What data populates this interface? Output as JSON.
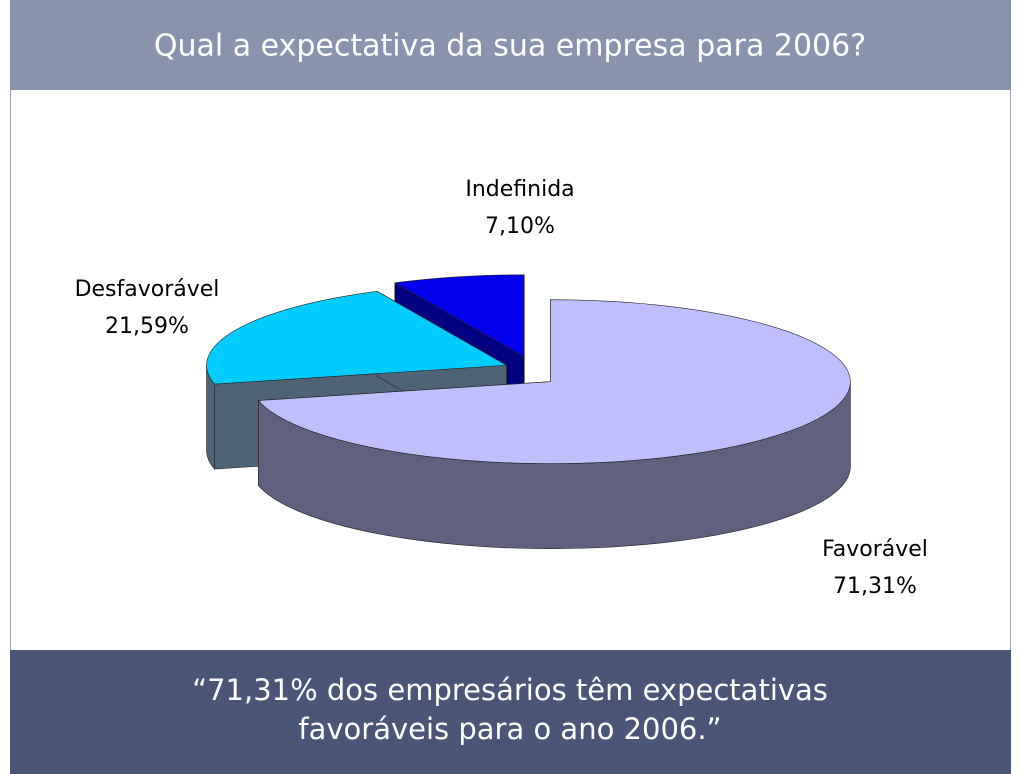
{
  "chart_data": {
    "type": "pie3d",
    "title": "Qual a expectativa da sua empresa para 2006?",
    "categories": [
      "Favorável",
      "Desfavorável",
      "Indefinida"
    ],
    "values": [
      71.31,
      21.59,
      7.1
    ],
    "value_labels": [
      "71,31%",
      "21,59%",
      "7,10%"
    ],
    "colors": [
      "#bfbfff",
      "#00ccff",
      "#0000ee"
    ],
    "side_colors": [
      "#606080",
      "#4f6377",
      "#000080"
    ]
  },
  "footer": {
    "lines": [
      "“71,31% dos empresários têm expectativas",
      "favoráveis para o ano 2006.”"
    ]
  }
}
